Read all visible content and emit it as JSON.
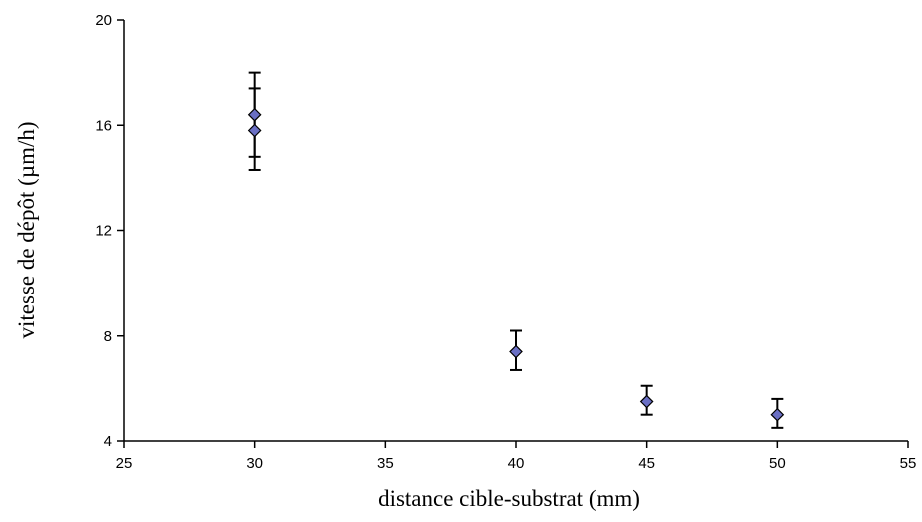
{
  "chart_data": {
    "type": "scatter",
    "xlabel": "distance cible-substrat (mm)",
    "ylabel": "vitesse de dépôt (µm/h)",
    "xlim": [
      25,
      55
    ],
    "ylim": [
      4,
      20
    ],
    "xticks": [
      25,
      30,
      35,
      40,
      45,
      50,
      55
    ],
    "yticks": [
      4,
      8,
      12,
      16,
      20
    ],
    "xtick_labels": [
      "25",
      "30",
      "35",
      "40",
      "45",
      "50",
      "55"
    ],
    "ytick_labels": [
      "4",
      "8",
      "12",
      "16",
      "20"
    ],
    "grid": false,
    "legend": "none",
    "marker": "diamond",
    "marker_fill": "#6a6fc4",
    "points": [
      {
        "x": 30,
        "y": 16.4,
        "err_low": 14.8,
        "err_high": 18.0
      },
      {
        "x": 30,
        "y": 15.8,
        "err_low": 14.3,
        "err_high": 17.4
      },
      {
        "x": 40,
        "y": 7.4,
        "err_low": 6.7,
        "err_high": 8.2
      },
      {
        "x": 45,
        "y": 5.5,
        "err_low": 5.0,
        "err_high": 6.1
      },
      {
        "x": 50,
        "y": 5.0,
        "err_low": 4.5,
        "err_high": 5.6
      }
    ]
  }
}
